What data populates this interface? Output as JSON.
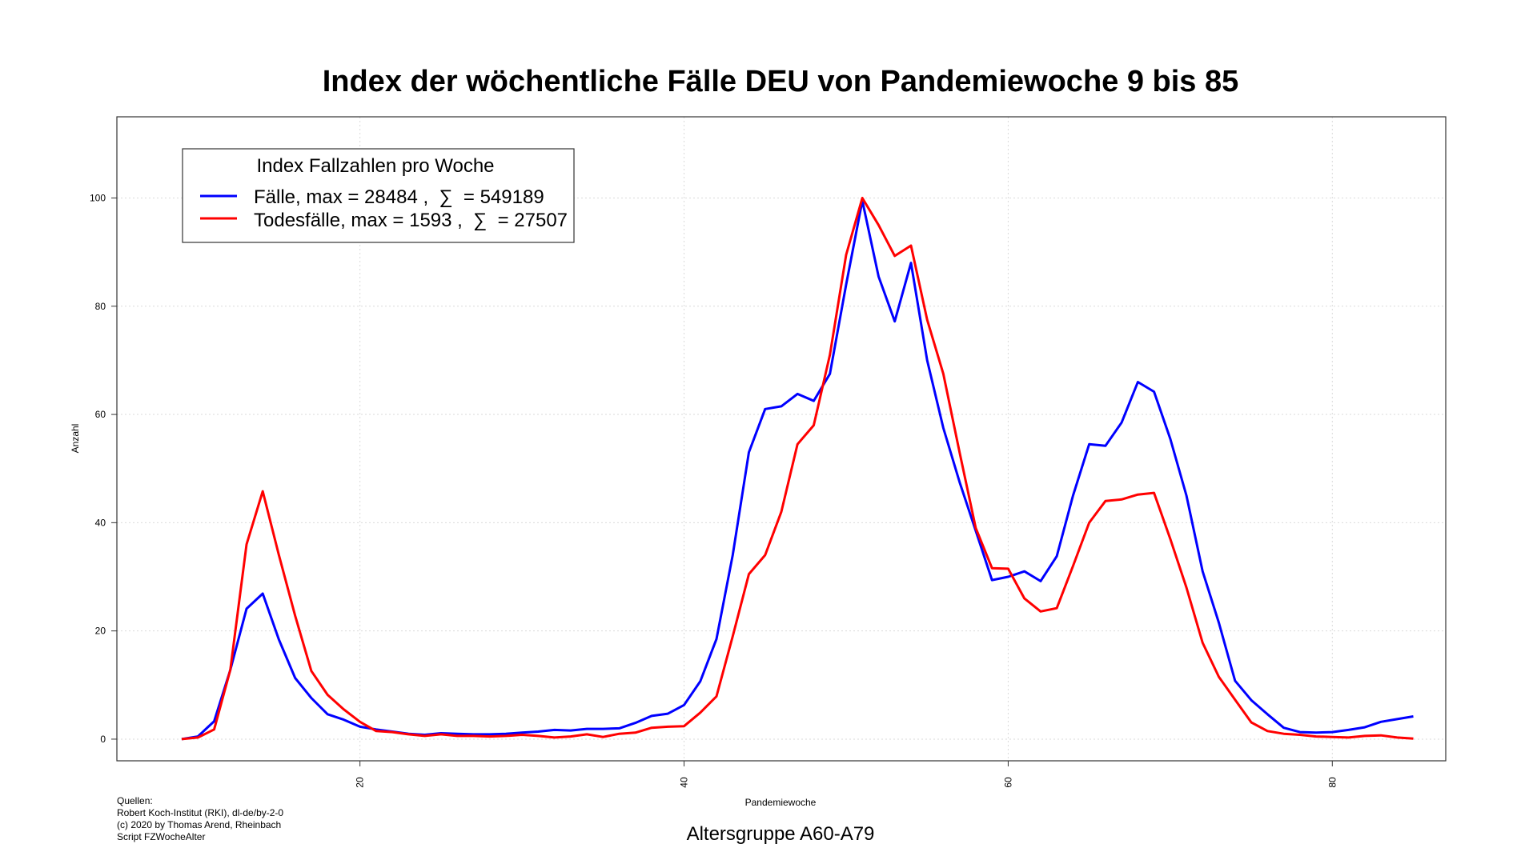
{
  "chart_data": {
    "type": "line",
    "title": "Index der wöchentliche Fälle DEU von Pandemiewoche 9 bis 85",
    "xlabel": "Pandemiewoche",
    "ylabel": "Anzahl",
    "subtitle": "Altersgruppe A60-A79",
    "xlim": [
      5,
      87
    ],
    "ylim": [
      -4,
      115
    ],
    "xticks": [
      20,
      40,
      60,
      80
    ],
    "yticks": [
      0,
      20,
      40,
      60,
      80,
      100
    ],
    "grid": true,
    "legend": {
      "title": "Index Fallzahlen pro Woche",
      "placement": "top-left",
      "entries": [
        "Fälle, max = 28484 ,  ∑  = 549189",
        "Todesfälle, max = 1593 ,  ∑  = 27507"
      ]
    },
    "x": [
      9,
      10,
      11,
      12,
      13,
      14,
      15,
      16,
      17,
      18,
      19,
      20,
      21,
      22,
      23,
      24,
      25,
      26,
      27,
      28,
      29,
      30,
      31,
      32,
      33,
      34,
      35,
      36,
      37,
      38,
      39,
      40,
      41,
      42,
      43,
      44,
      45,
      46,
      47,
      48,
      49,
      50,
      51,
      52,
      53,
      54,
      55,
      56,
      57,
      58,
      59,
      60,
      61,
      62,
      63,
      64,
      65,
      66,
      67,
      68,
      69,
      70,
      71,
      72,
      73,
      74,
      75,
      76,
      77,
      78,
      79,
      80,
      81,
      82,
      83,
      84,
      85
    ],
    "series": [
      {
        "name": "Fälle, max = 28484 ,  ∑  = 549189",
        "color": "#0000ff",
        "values": [
          0,
          0.5,
          3.3,
          12.8,
          24.1,
          26.9,
          18.4,
          11.3,
          7.6,
          4.6,
          3.6,
          2.3,
          1.8,
          1.4,
          1.0,
          0.8,
          1.1,
          1.0,
          0.9,
          0.9,
          1.0,
          1.2,
          1.4,
          1.7,
          1.6,
          1.9,
          1.9,
          2.0,
          3.0,
          4.3,
          4.7,
          6.3,
          10.7,
          18.5,
          34.0,
          53.0,
          61.0,
          61.5,
          63.8,
          62.5,
          67.5,
          84.0,
          99.5,
          85.5,
          77.2,
          88.0,
          70.0,
          57.5,
          47.5,
          38.5,
          29.4,
          30.0,
          31.0,
          29.2,
          33.8,
          45.0,
          54.5,
          54.2,
          58.5,
          66.0,
          64.2,
          55.5,
          45.0,
          31.0,
          21.5,
          10.8,
          7.2,
          4.6,
          2.1,
          1.3,
          1.2,
          1.3,
          1.7,
          2.2,
          3.2,
          3.7,
          4.2
        ]
      },
      {
        "name": "Todesfälle, max = 1593 ,  ∑  = 27507",
        "color": "#ff0000",
        "values": [
          0,
          0.3,
          1.8,
          12.8,
          36.0,
          45.8,
          34.0,
          22.8,
          12.6,
          8.2,
          5.5,
          3.2,
          1.5,
          1.3,
          0.9,
          0.6,
          0.9,
          0.6,
          0.6,
          0.5,
          0.6,
          0.8,
          0.6,
          0.3,
          0.5,
          0.9,
          0.4,
          1.0,
          1.2,
          2.1,
          2.3,
          2.4,
          4.9,
          7.9,
          19.0,
          30.5,
          34.0,
          42.0,
          54.5,
          58.0,
          71.0,
          89.5,
          100,
          95.0,
          89.3,
          91.2,
          77.5,
          67.5,
          53.0,
          39.0,
          31.6,
          31.5,
          26.0,
          23.6,
          24.2,
          32.0,
          40.0,
          44.0,
          44.3,
          45.2,
          45.5,
          37.0,
          28.0,
          17.8,
          11.5,
          7.3,
          3.1,
          1.5,
          1.0,
          0.8,
          0.5,
          0.4,
          0.3,
          0.6,
          0.7,
          0.3,
          0.1
        ]
      }
    ],
    "source_lines": [
      "Quellen:",
      "Robert Koch-Institut (RKI), dl-de/by-2-0",
      "(c) 2020 by Thomas Arend, Rheinbach",
      "Script FZWocheAlter"
    ]
  }
}
